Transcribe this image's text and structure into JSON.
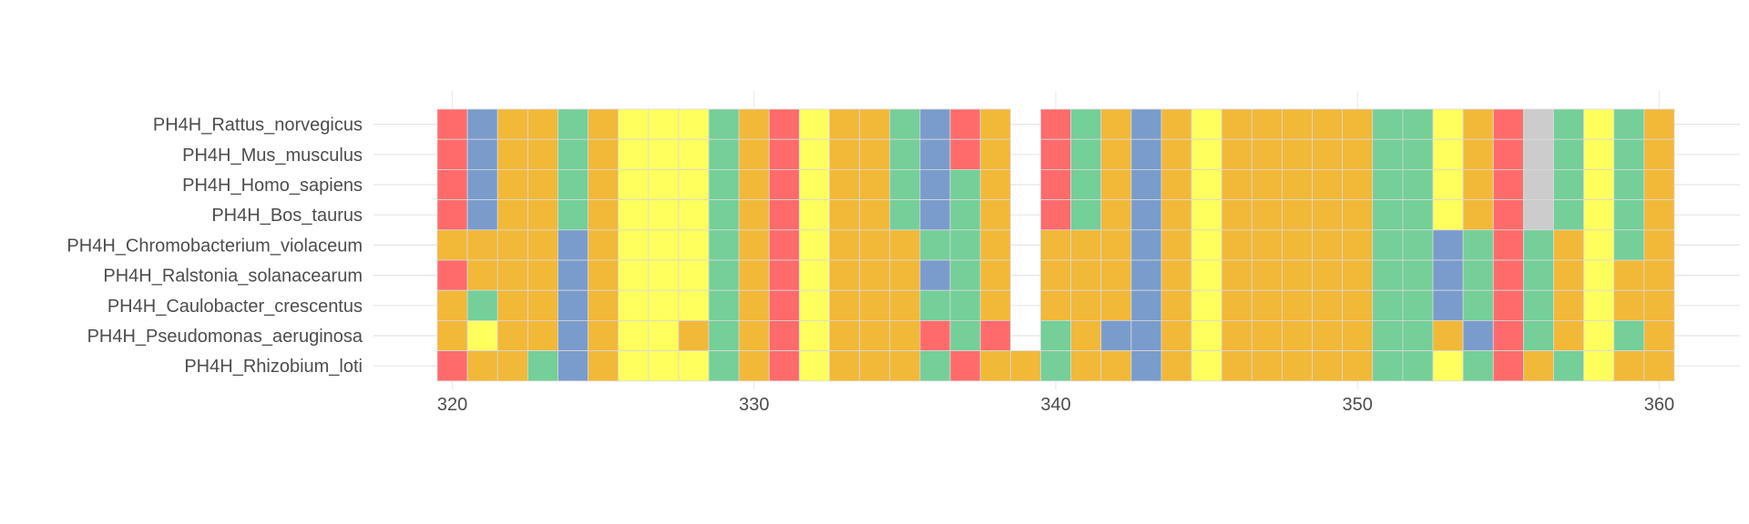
{
  "chart_data": {
    "type": "heatmap",
    "title": "",
    "xlabel": "",
    "ylabel": "",
    "xlim": [
      319.5,
      360.5
    ],
    "x_ticks": [
      320,
      330,
      340,
      350,
      360
    ],
    "x_tick_labels": [
      "320",
      "330",
      "340",
      "350",
      "360"
    ],
    "grid": true,
    "legend": "none",
    "colors": {
      "R": "#ff6b6b",
      "B": "#7a9ccc",
      "O": "#f2b838",
      "G": "#74cf98",
      "Y": "#ffff5e",
      "gap": "#ffffff"
    },
    "x_start": 320,
    "rows": [
      {
        "name": "PH4H_Rattus_norvegicus",
        "cells": "RBOOGOYYYGORYOOGBROWRGOBOYOOOOOGGYORDGYGO"
      },
      {
        "name": "PH4H_Mus_musculus",
        "cells": "RBOOGOYYYGORYOOGBROWRGOBOYOOOOOGGYORDGYGO"
      },
      {
        "name": "PH4H_Homo_sapiens",
        "cells": "RBOOGOYYYGORYOOGBGOWRGOBOYOOOOOGGYORDGYGO"
      },
      {
        "name": "PH4H_Bos_taurus",
        "cells": "RBOOGOYYYGORYOOGBGOWRGOBOYOOOOOGGYORDGYGO"
      },
      {
        "name": "PH4H_Chromobacterium_violaceum",
        "cells": "OOOOBOYYYGORYOOOGGOWOOOBOYOOOOOGGBGRGOYGO"
      },
      {
        "name": "PH4H_Ralstonia_solanacearum",
        "cells": "ROOOBOYYYGORYOOOBGOWOOOBOYOOOOOGGBGRGOYOO"
      },
      {
        "name": "PH4H_Caulobacter_crescentus",
        "cells": "OGOOBOYYYGORYOOOGGOWOOOBOYOOOOOGGBGRGOYOO"
      },
      {
        "name": "PH4H_Pseudomonas_aeruginosa",
        "cells": "OYOOBOYYOGORYOOORGRWGOBBOYOOOOOGGOBRGOYGO"
      },
      {
        "name": "PH4H_Rhizobium_loti",
        "cells": "ROOGBOYYYGORYOOOGROOGOOBOYOOOOOGGYGROGYOO"
      }
    ]
  }
}
